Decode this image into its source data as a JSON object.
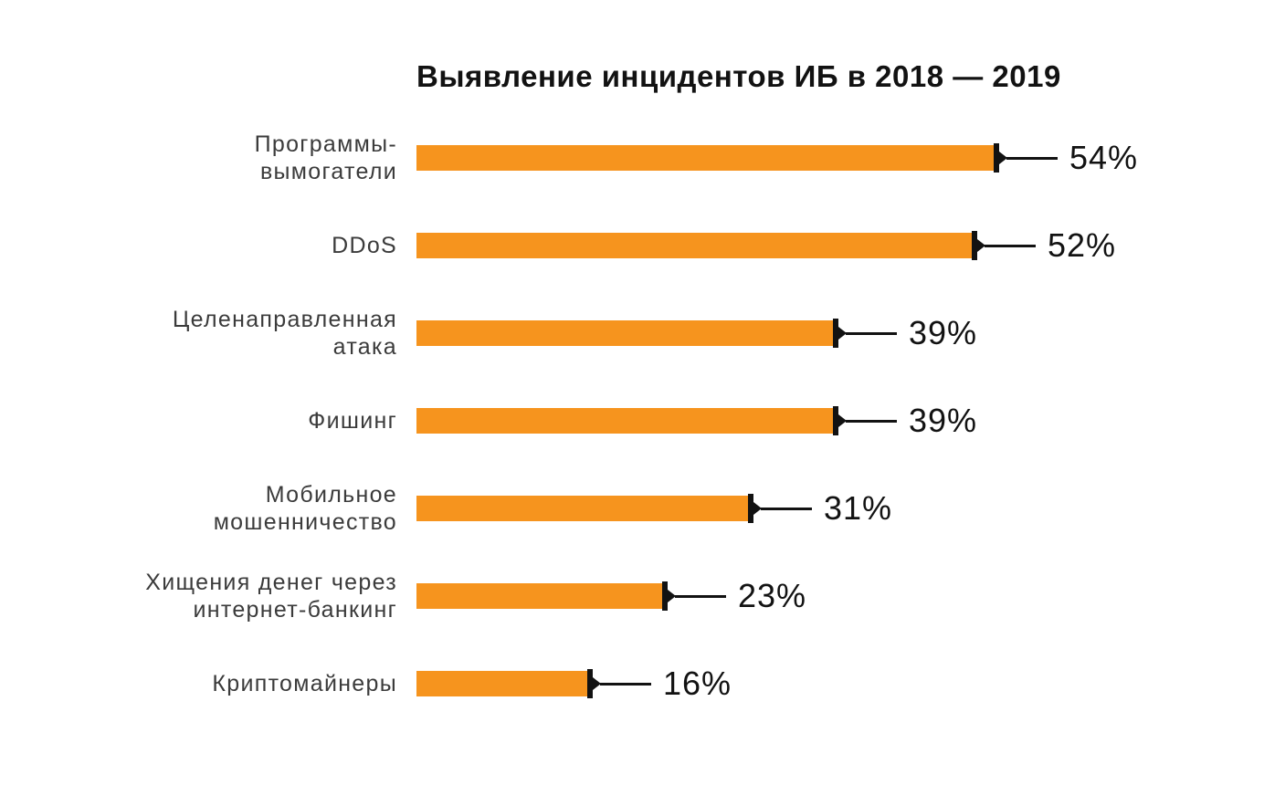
{
  "title": "Выявление инцидентов ИБ в 2018 — 2019",
  "colors": {
    "bar": "#F6941E",
    "ink": "#121212",
    "label": "#3B3B3B",
    "background": "#FFFFFF"
  },
  "chart_data": {
    "type": "bar",
    "orientation": "horizontal",
    "title": "Выявление инцидентов ИБ в 2018 — 2019",
    "xlabel": "",
    "ylabel": "",
    "unit": "%",
    "xlim": [
      0,
      60
    ],
    "grid": false,
    "legend": "none",
    "bar_color": "#F6941E",
    "categories": [
      "Программы-вымогатели",
      "DDoS",
      "Целенаправленная атака",
      "Фишинг",
      "Мобильное мошенничество",
      "Хищения денег через интернет-банкинг",
      "Криптомайнеры"
    ],
    "values": [
      54,
      52,
      39,
      39,
      31,
      23,
      16
    ],
    "value_labels": [
      "54%",
      "52%",
      "39%",
      "39%",
      "31%",
      "23%",
      "16%"
    ],
    "rows": [
      {
        "label": "Программы-\nвымогатели",
        "value": 54,
        "value_label": "54%"
      },
      {
        "label": "DDoS",
        "value": 52,
        "value_label": "52%"
      },
      {
        "label": "Целенаправленная\nатака",
        "value": 39,
        "value_label": "39%"
      },
      {
        "label": "Фишинг",
        "value": 39,
        "value_label": "39%"
      },
      {
        "label": "Мобильное\nмошенничество",
        "value": 31,
        "value_label": "31%"
      },
      {
        "label": "Хищения денег через\nинтернет-банкинг",
        "value": 23,
        "value_label": "23%"
      },
      {
        "label": "Криптомайнеры",
        "value": 16,
        "value_label": "16%"
      }
    ]
  }
}
